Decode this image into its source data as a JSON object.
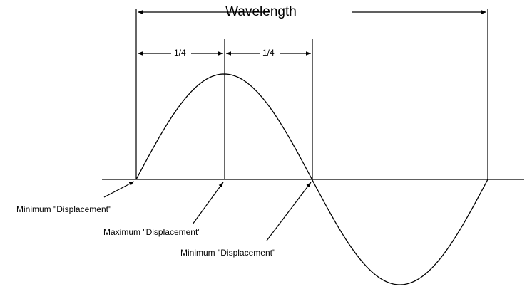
{
  "diagram": {
    "title": "Wavelength",
    "quarter_label_1": "1/4",
    "quarter_label_2": "1/4",
    "annotations": [
      "Minimum \"Displacement\"",
      "Maximum \"Displacement\"",
      "Minimum \"Displacement\""
    ],
    "colors": {
      "line": "#000000",
      "background": "#ffffff"
    }
  }
}
